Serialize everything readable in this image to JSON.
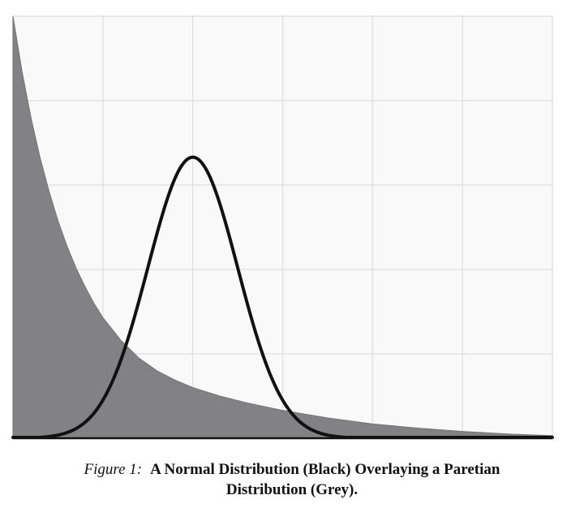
{
  "figure": {
    "label": "Figure 1:",
    "title_line1": "A Normal Distribution (Black) Overlaying a Paretian",
    "title_line2": "Distribution (Grey)."
  },
  "chart_data": {
    "type": "area",
    "title": "A Normal Distribution (Black) Overlaying a Paretian Distribution (Grey).",
    "xlabel": "",
    "ylabel": "",
    "xlim": [
      0,
      6
    ],
    "ylim": [
      0,
      5
    ],
    "grid": true,
    "series": [
      {
        "name": "Paretian Distribution (Grey)",
        "kind": "area",
        "color": "#828285",
        "x": [
          0,
          0.1,
          0.2,
          0.3,
          0.4,
          0.5,
          0.6,
          0.7,
          0.8,
          0.9,
          1.0,
          1.2,
          1.4,
          1.6,
          1.8,
          2.0,
          2.3,
          2.6,
          3.0,
          3.5,
          4.0,
          4.5,
          5.0,
          5.5,
          6.0
        ],
        "values": [
          5.0,
          4.35,
          3.8,
          3.33,
          2.93,
          2.58,
          2.28,
          2.02,
          1.8,
          1.6,
          1.43,
          1.16,
          0.95,
          0.8,
          0.69,
          0.6,
          0.5,
          0.42,
          0.33,
          0.24,
          0.17,
          0.12,
          0.08,
          0.05,
          0.03
        ]
      },
      {
        "name": "Normal Distribution (Black)",
        "kind": "line",
        "color": "#111111",
        "mean": 2.0,
        "sd": 0.5,
        "peak": 3.33
      }
    ]
  }
}
